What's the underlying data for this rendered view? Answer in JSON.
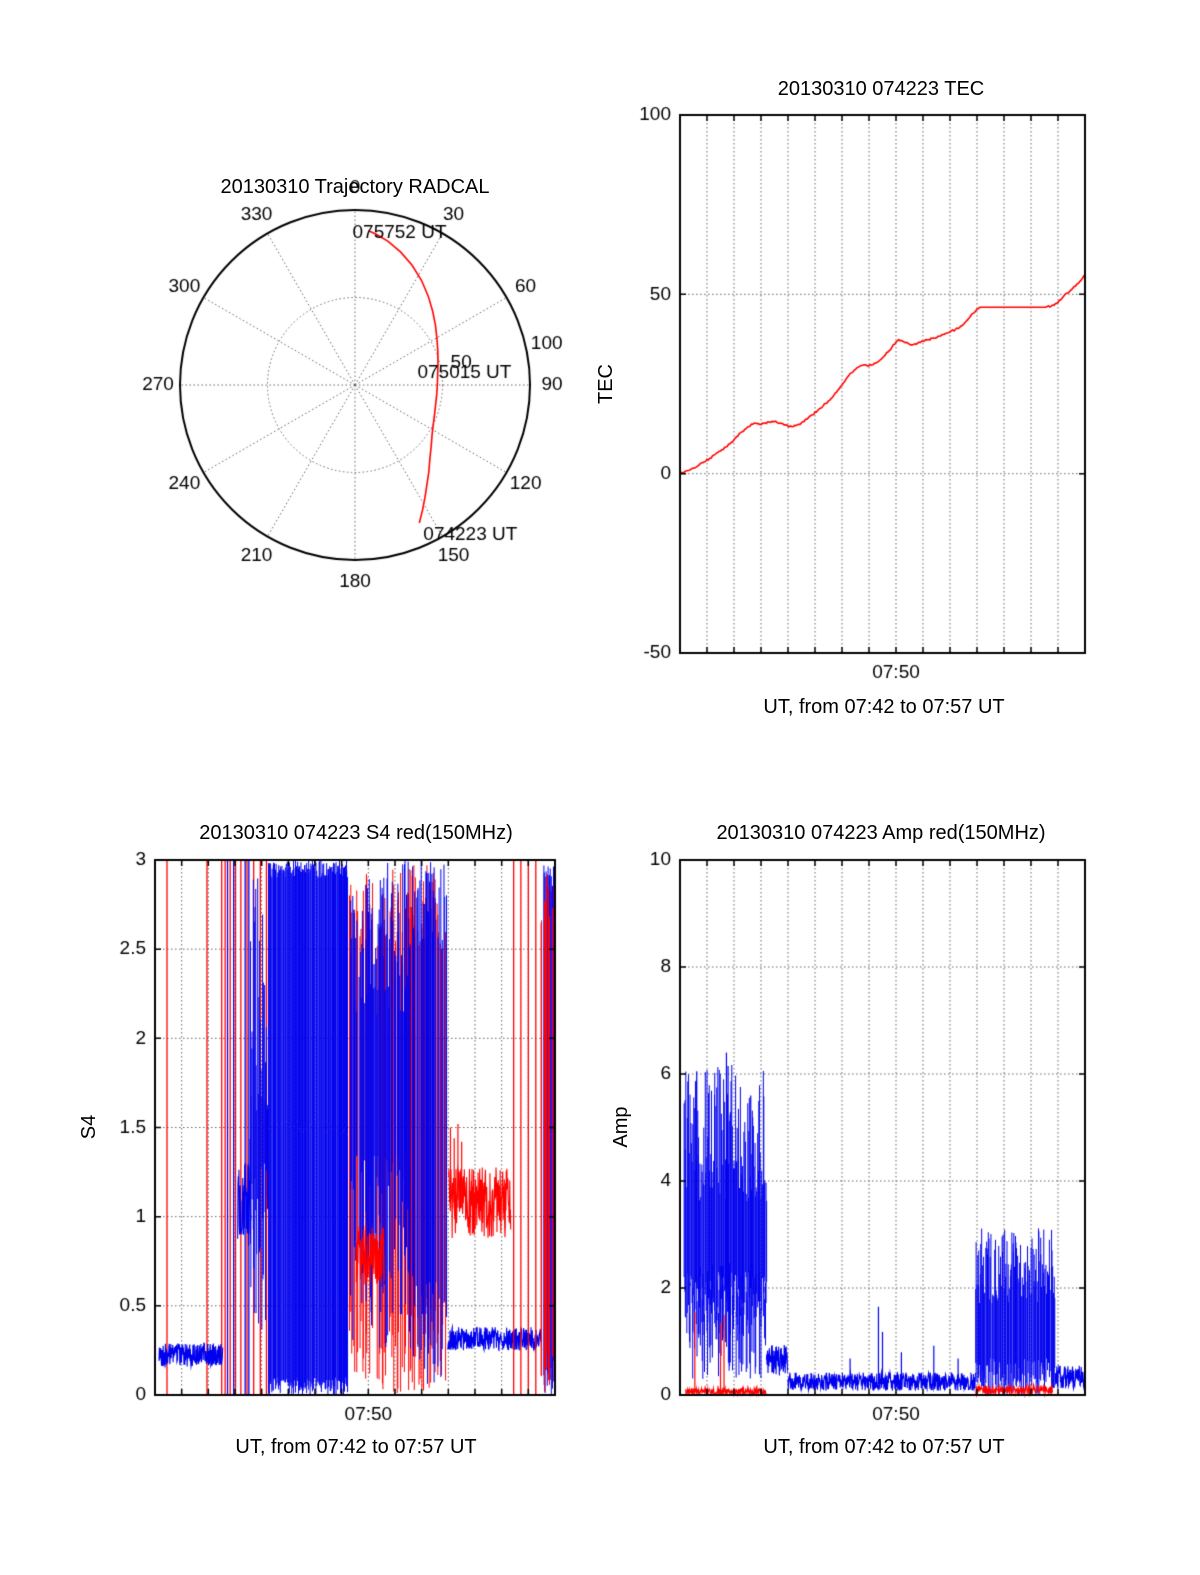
{
  "noise_seed": 20130310,
  "colors": {
    "red": "#ff0000",
    "blue": "#0000ee",
    "grid": "#666666",
    "axis": "#000000",
    "background": "#ffffff"
  },
  "chart_data": {
    "trajectory": {
      "type": "polar-line",
      "title": "20130310 Trajectory RADCAL",
      "az_labels": [
        "0",
        "30",
        "60",
        "90",
        "120",
        "150",
        "180",
        "210",
        "240",
        "270",
        "300",
        "330"
      ],
      "r_max": 100,
      "rings": [
        50,
        100
      ],
      "r_axis_angle_deg": 78,
      "r_tick_labels": [
        {
          "value": 50,
          "label": "50"
        },
        {
          "value": 100,
          "label": "100"
        }
      ],
      "trajectory_color": "red",
      "points_az_r": [
        [
          155,
          87
        ],
        [
          151.5,
          81
        ],
        [
          148,
          75.5
        ],
        [
          144,
          70
        ],
        [
          139.5,
          65
        ],
        [
          134.5,
          60
        ],
        [
          129,
          56
        ],
        [
          123,
          52.5
        ],
        [
          116.5,
          50
        ],
        [
          109.5,
          48.3
        ],
        [
          102.5,
          47.3
        ],
        [
          95.5,
          47.0
        ],
        [
          88.5,
          47.1
        ],
        [
          81.5,
          47.8
        ],
        [
          74.5,
          49.2
        ],
        [
          67.5,
          51.2
        ],
        [
          60.5,
          53.8
        ],
        [
          53.5,
          57.2
        ],
        [
          46.5,
          61.2
        ],
        [
          39.5,
          65.8
        ],
        [
          32.5,
          70.8
        ],
        [
          25.5,
          75.8
        ],
        [
          19,
          80.3
        ],
        [
          13,
          84.2
        ],
        [
          8,
          87
        ],
        [
          5,
          88.5
        ]
      ],
      "annotations": [
        {
          "label": "074223 UT",
          "az": 155,
          "r": 87,
          "offset": [
            4,
            12
          ]
        },
        {
          "label": "075015 UT",
          "az": 90,
          "r": 47.1,
          "offset": [
            -20,
            -12
          ]
        },
        {
          "label": "075752 UT",
          "az": 5,
          "r": 88.5,
          "offset": [
            -16,
            2
          ]
        }
      ]
    },
    "tec": {
      "type": "line",
      "title": "20130310 074223 TEC",
      "ylabel": "TEC",
      "xlabel": "UT, from 07:42 to 07:57 UT",
      "ylim": [
        -50,
        100
      ],
      "yticks": [
        -50,
        0,
        50,
        100
      ],
      "grid_y": [
        0,
        50
      ],
      "xlim_minutes": [
        0,
        15
      ],
      "xgrid_step": 1,
      "xticks": [
        {
          "t": 8,
          "label": "07:50"
        }
      ],
      "series": [
        {
          "name": "TEC",
          "color": "red",
          "type": "line",
          "jitter": 0.5,
          "points": [
            [
              0,
              0.2
            ],
            [
              0.15,
              0.4
            ],
            [
              0.3,
              0.9
            ],
            [
              0.5,
              1.6
            ],
            [
              0.7,
              2.4
            ],
            [
              0.9,
              3.3
            ],
            [
              1.1,
              4.3
            ],
            [
              1.3,
              5.3
            ],
            [
              1.5,
              6.3
            ],
            [
              1.7,
              7.4
            ],
            [
              1.9,
              8.7
            ],
            [
              2.1,
              10.3
            ],
            [
              2.3,
              11.7
            ],
            [
              2.5,
              13.0
            ],
            [
              2.65,
              13.8
            ],
            [
              2.8,
              14.1
            ],
            [
              2.95,
              13.7
            ],
            [
              3.1,
              14.0
            ],
            [
              3.3,
              14.4
            ],
            [
              3.5,
              14.6
            ],
            [
              3.7,
              14.1
            ],
            [
              3.85,
              13.6
            ],
            [
              4.0,
              13.3
            ],
            [
              4.15,
              13.1
            ],
            [
              4.3,
              13.4
            ],
            [
              4.5,
              14.2
            ],
            [
              4.7,
              15.2
            ],
            [
              4.9,
              16.4
            ],
            [
              5.1,
              17.6
            ],
            [
              5.3,
              18.9
            ],
            [
              5.5,
              20.3
            ],
            [
              5.7,
              21.9
            ],
            [
              5.9,
              23.7
            ],
            [
              6.05,
              25.3
            ],
            [
              6.2,
              26.9
            ],
            [
              6.35,
              28.1
            ],
            [
              6.5,
              29.1
            ],
            [
              6.65,
              29.9
            ],
            [
              6.8,
              30.3
            ],
            [
              7.0,
              30.1
            ],
            [
              7.15,
              30.4
            ],
            [
              7.3,
              31.1
            ],
            [
              7.5,
              32.3
            ],
            [
              7.7,
              33.9
            ],
            [
              7.85,
              35.3
            ],
            [
              8.0,
              36.7
            ],
            [
              8.1,
              37.4
            ],
            [
              8.2,
              37.1
            ],
            [
              8.35,
              36.5
            ],
            [
              8.5,
              36.1
            ],
            [
              8.65,
              36.0
            ],
            [
              8.8,
              36.4
            ],
            [
              9.0,
              36.9
            ],
            [
              9.2,
              37.4
            ],
            [
              9.4,
              37.8
            ],
            [
              9.6,
              38.3
            ],
            [
              9.8,
              38.9
            ],
            [
              10.0,
              39.5
            ],
            [
              10.2,
              40.2
            ],
            [
              10.4,
              41.1
            ],
            [
              10.55,
              42.1
            ],
            [
              10.7,
              43.3
            ],
            [
              10.85,
              44.7
            ],
            [
              11.0,
              45.9
            ],
            [
              11.1,
              46.4
            ],
            [
              11.3,
              46.4
            ],
            [
              13.55,
              46.4
            ],
            [
              13.75,
              46.7
            ],
            [
              13.9,
              47.4
            ],
            [
              14.05,
              48.3
            ],
            [
              14.2,
              49.4
            ],
            [
              14.35,
              50.4
            ],
            [
              14.5,
              51.3
            ],
            [
              14.65,
              52.3
            ],
            [
              14.8,
              53.5
            ],
            [
              14.9,
              54.4
            ],
            [
              15,
              55.4
            ]
          ]
        }
      ]
    },
    "s4": {
      "type": "noisy-line",
      "title": "20130310 074223 S4 red(150MHz)",
      "ylabel": "S4",
      "xlabel": "UT, from 07:42 to 07:57 UT",
      "ylim": [
        0,
        3
      ],
      "yticks": [
        0,
        0.5,
        1,
        1.5,
        2,
        2.5,
        3
      ],
      "grid_y": [
        0.5,
        1,
        1.5,
        2,
        2.5
      ],
      "xlim_minutes": [
        0,
        15
      ],
      "xgrid_step": 1,
      "xticks": [
        {
          "t": 8,
          "label": "07:50"
        }
      ],
      "series": [
        {
          "color": "red",
          "type": "vlines",
          "times": [
            0.45,
            1.95,
            2.5,
            2.63,
            2.82,
            3.02,
            3.22,
            3.45,
            3.7,
            3.95,
            4.18
          ],
          "lo": 0,
          "hi": 3
        },
        {
          "color": "blue",
          "type": "band",
          "t0": 0.15,
          "t1": 2.55,
          "lo": 0.16,
          "hi": 0.29
        },
        {
          "color": "blue",
          "type": "vlines",
          "times": [
            2.72,
            2.95,
            3.38,
            3.52
          ],
          "lo": 0,
          "hi": 3
        },
        {
          "color": "blue",
          "type": "band",
          "t0": 3.1,
          "t1": 3.6,
          "lo": 0.82,
          "hi": 1.32
        },
        {
          "color": "blue",
          "type": "vfill",
          "t0": 3.55,
          "t1": 4.25,
          "bot": [
            0.35,
            1.3
          ],
          "top": [
            1.4,
            3.0
          ]
        },
        {
          "color": "blue",
          "type": "vfill",
          "t0": 4.25,
          "t1": 7.25,
          "bot": [
            0.0,
            0.1
          ],
          "top": [
            2.9,
            3.0
          ]
        },
        {
          "color": "red",
          "type": "vfill",
          "t0": 7.3,
          "t1": 10.95,
          "bot": [
            0.0,
            0.5
          ],
          "top": [
            2.5,
            3.0
          ],
          "gap": 0.45
        },
        {
          "color": "blue",
          "type": "vfill",
          "t0": 7.25,
          "t1": 9.6,
          "bot": [
            0.25,
            1.35
          ],
          "top": [
            2.1,
            3.0
          ],
          "gap": 0.15
        },
        {
          "color": "blue",
          "type": "vfill",
          "t0": 9.6,
          "t1": 10.95,
          "bot": [
            0.05,
            0.7
          ],
          "top": [
            2.55,
            3.0
          ],
          "gap": 0.3
        },
        {
          "color": "red",
          "type": "band",
          "t0": 7.55,
          "t1": 8.6,
          "lo": 0.62,
          "hi": 0.95
        },
        {
          "color": "blue",
          "type": "band",
          "t0": 10.98,
          "t1": 14.5,
          "lo": 0.25,
          "hi": 0.38
        },
        {
          "color": "red",
          "type": "band",
          "t0": 11.0,
          "t1": 13.35,
          "lo": 0.88,
          "hi": 1.28
        },
        {
          "color": "red",
          "type": "spikes",
          "base": 1.05,
          "points": [
            [
              11.08,
              1.5
            ],
            [
              11.22,
              1.44
            ],
            [
              11.36,
              1.52
            ],
            [
              11.5,
              1.42
            ]
          ]
        },
        {
          "color": "red",
          "type": "vlines",
          "times": [
            13.45,
            13.72,
            14.0,
            14.28
          ],
          "lo": 0,
          "hi": 3
        },
        {
          "color": "blue",
          "type": "vfill",
          "t0": 14.5,
          "t1": 15.0,
          "bot": [
            0.0,
            0.2
          ],
          "top": [
            2.8,
            3.0
          ],
          "gap": 0.2
        },
        {
          "color": "red",
          "type": "vfill",
          "t0": 14.45,
          "t1": 15.0,
          "bot": [
            0.0,
            0.3
          ],
          "top": [
            2.6,
            3.0
          ],
          "gap": 0.5
        }
      ]
    },
    "amp": {
      "type": "noisy-line",
      "title": "20130310 074223 Amp red(150MHz)",
      "ylabel": "Amp",
      "xlabel": "UT, from 07:42 to 07:57 UT",
      "ylim": [
        0,
        10
      ],
      "yticks": [
        0,
        2,
        4,
        6,
        8,
        10
      ],
      "grid_y": [
        2,
        4,
        6,
        8
      ],
      "xlim_minutes": [
        0,
        15
      ],
      "xgrid_step": 1,
      "xticks": [
        {
          "t": 8,
          "label": "07:50"
        }
      ],
      "series": [
        {
          "color": "blue",
          "type": "vfill",
          "t0": 0.15,
          "t1": 3.2,
          "bot": [
            1.1,
            2.3
          ],
          "top": [
            3.6,
            6.2
          ]
        },
        {
          "color": "blue",
          "type": "vfill",
          "t0": 0.15,
          "t1": 3.2,
          "bot": [
            0.3,
            1.1
          ],
          "top": [
            1.5,
            2.5
          ],
          "gap": 0.6
        },
        {
          "color": "blue",
          "type": "spikes",
          "base": 2.0,
          "points": [
            [
              0.62,
              6.05
            ],
            [
              1.72,
              6.4
            ],
            [
              1.78,
              6.15
            ],
            [
              2.62,
              5.6
            ]
          ]
        },
        {
          "color": "blue",
          "type": "band",
          "t0": 3.2,
          "t1": 4.0,
          "lo": 0.35,
          "hi": 0.95
        },
        {
          "color": "blue",
          "type": "band",
          "t0": 4.0,
          "t1": 10.95,
          "lo": 0.08,
          "hi": 0.42
        },
        {
          "color": "blue",
          "type": "spikes",
          "base": 0.2,
          "points": [
            [
              6.3,
              0.68
            ],
            [
              7.35,
              1.65
            ],
            [
              7.5,
              1.18
            ],
            [
              8.2,
              0.8
            ],
            [
              9.4,
              0.92
            ],
            [
              10.3,
              0.68
            ]
          ]
        },
        {
          "color": "red",
          "type": "band",
          "t0": 0.2,
          "t1": 3.2,
          "lo": 0.02,
          "hi": 0.12
        },
        {
          "color": "red",
          "type": "spikes",
          "base": 0.06,
          "points": [
            [
              0.55,
              1.55
            ],
            [
              1.5,
              1.35
            ],
            [
              1.63,
              1.5
            ]
          ]
        },
        {
          "color": "blue",
          "type": "vfill",
          "t0": 10.95,
          "t1": 13.9,
          "bot": [
            0.0,
            0.7
          ],
          "top": [
            1.7,
            3.15
          ]
        },
        {
          "color": "red",
          "type": "band",
          "t0": 10.95,
          "t1": 13.8,
          "lo": 0.02,
          "hi": 0.17
        },
        {
          "color": "blue",
          "type": "band",
          "t0": 13.9,
          "t1": 15.0,
          "lo": 0.12,
          "hi": 0.55
        }
      ]
    }
  }
}
